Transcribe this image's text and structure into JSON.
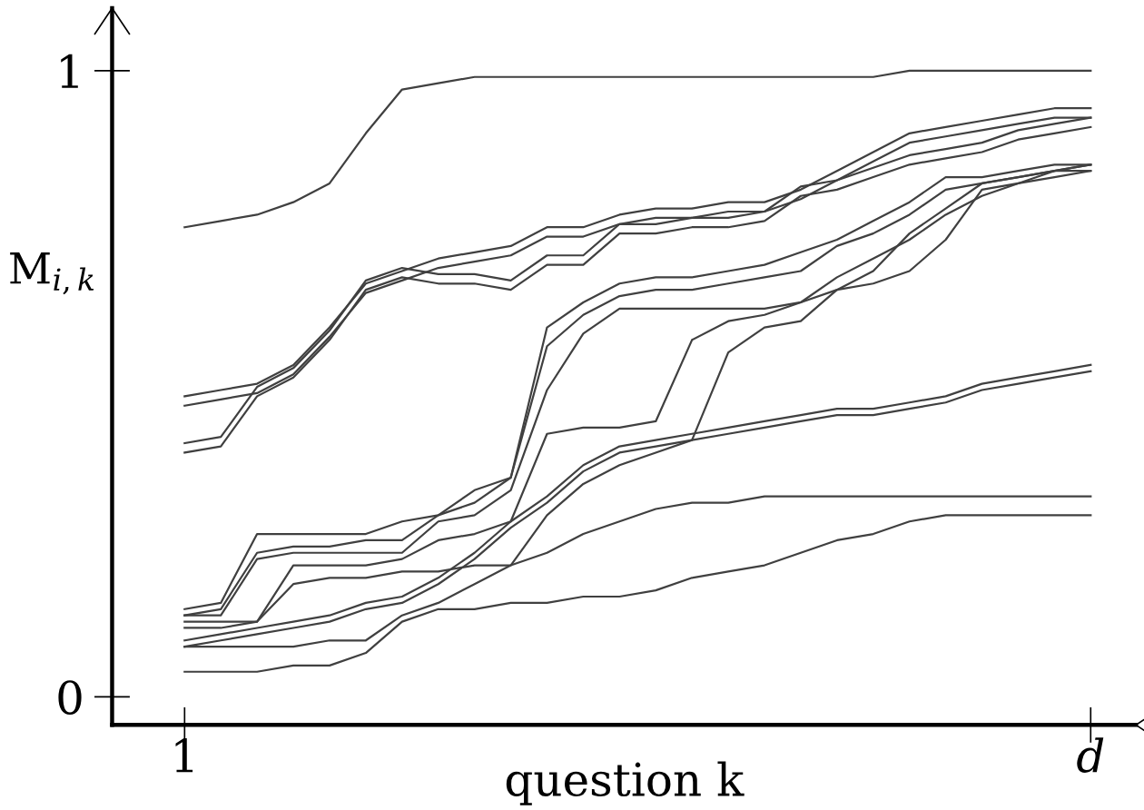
{
  "chart_data": {
    "type": "line",
    "xlabel": "question k",
    "ylabel": "M$_{i,k}$",
    "categories": [
      "1",
      null,
      null,
      null,
      null,
      null,
      null,
      null,
      null,
      null,
      null,
      null,
      null,
      null,
      null,
      null,
      null,
      null,
      null,
      null,
      null,
      null,
      null,
      null,
      null,
      "d"
    ],
    "ylim": [
      -0.045,
      1.1
    ],
    "yticks": [
      0,
      1
    ],
    "grid": false,
    "legend": false,
    "marker": "none",
    "line_style": "solid",
    "series": [
      {
        "color": "#404040",
        "values": [
          0.75,
          0.76,
          0.77,
          0.79,
          0.82,
          0.9,
          0.97,
          0.98,
          0.99,
          0.99,
          0.99,
          0.99,
          0.99,
          0.99,
          0.99,
          0.99,
          0.99,
          0.99,
          0.99,
          0.99,
          1.0,
          1.0,
          1.0,
          1.0,
          1.0,
          1.0
        ]
      },
      {
        "color": "#404040",
        "values": [
          0.48,
          0.49,
          0.5,
          0.53,
          0.59,
          0.66,
          0.68,
          0.7,
          0.71,
          0.72,
          0.75,
          0.75,
          0.77,
          0.78,
          0.78,
          0.79,
          0.79,
          0.81,
          0.84,
          0.87,
          0.9,
          0.91,
          0.92,
          0.93,
          0.94,
          0.94
        ]
      },
      {
        "color": "#404040",
        "values": [
          0.465,
          0.475,
          0.485,
          0.515,
          0.575,
          0.645,
          0.665,
          0.685,
          0.695,
          0.705,
          0.735,
          0.735,
          0.755,
          0.765,
          0.765,
          0.775,
          0.775,
          0.795,
          0.825,
          0.855,
          0.885,
          0.895,
          0.905,
          0.915,
          0.925,
          0.925
        ]
      },
      {
        "color": "#404040",
        "values": [
          0.39,
          0.4,
          0.48,
          0.51,
          0.57,
          0.65,
          0.67,
          0.66,
          0.66,
          0.65,
          0.69,
          0.69,
          0.74,
          0.74,
          0.75,
          0.75,
          0.76,
          0.8,
          0.81,
          0.83,
          0.85,
          0.86,
          0.87,
          0.89,
          0.9,
          0.91
        ]
      },
      {
        "color": "#404040",
        "values": [
          0.405,
          0.415,
          0.495,
          0.525,
          0.585,
          0.665,
          0.685,
          0.675,
          0.675,
          0.665,
          0.705,
          0.705,
          0.755,
          0.755,
          0.765,
          0.765,
          0.775,
          0.815,
          0.825,
          0.845,
          0.865,
          0.875,
          0.885,
          0.905,
          0.915,
          0.925
        ]
      },
      {
        "color": "#404040",
        "values": [
          0.14,
          0.15,
          0.26,
          0.26,
          0.26,
          0.26,
          0.28,
          0.29,
          0.33,
          0.35,
          0.59,
          0.63,
          0.66,
          0.67,
          0.67,
          0.68,
          0.69,
          0.71,
          0.73,
          0.76,
          0.79,
          0.83,
          0.83,
          0.84,
          0.85,
          0.85
        ]
      },
      {
        "color": "#404040",
        "values": [
          0.13,
          0.14,
          0.23,
          0.24,
          0.24,
          0.25,
          0.25,
          0.29,
          0.31,
          0.35,
          0.56,
          0.61,
          0.64,
          0.65,
          0.65,
          0.66,
          0.67,
          0.68,
          0.72,
          0.74,
          0.77,
          0.81,
          0.82,
          0.83,
          0.84,
          0.85
        ]
      },
      {
        "color": "#404040",
        "values": [
          0.13,
          0.13,
          0.22,
          0.23,
          0.23,
          0.23,
          0.23,
          0.28,
          0.29,
          0.33,
          0.49,
          0.58,
          0.62,
          0.62,
          0.62,
          0.62,
          0.62,
          0.63,
          0.67,
          0.7,
          0.73,
          0.77,
          0.8,
          0.82,
          0.84,
          0.85
        ]
      },
      {
        "color": "#404040",
        "values": [
          0.12,
          0.12,
          0.12,
          0.21,
          0.21,
          0.21,
          0.22,
          0.25,
          0.26,
          0.28,
          0.42,
          0.43,
          0.43,
          0.44,
          0.57,
          0.6,
          0.61,
          0.63,
          0.65,
          0.68,
          0.74,
          0.78,
          0.82,
          0.83,
          0.84,
          0.84
        ]
      },
      {
        "color": "#404040",
        "values": [
          0.11,
          0.11,
          0.12,
          0.18,
          0.19,
          0.19,
          0.2,
          0.2,
          0.21,
          0.21,
          0.29,
          0.34,
          0.37,
          0.39,
          0.41,
          0.55,
          0.59,
          0.6,
          0.65,
          0.66,
          0.68,
          0.73,
          0.81,
          0.82,
          0.83,
          0.84
        ]
      },
      {
        "color": "#404040",
        "values": [
          0.09,
          0.1,
          0.11,
          0.12,
          0.13,
          0.15,
          0.16,
          0.19,
          0.23,
          0.28,
          0.32,
          0.37,
          0.4,
          0.41,
          0.42,
          0.43,
          0.44,
          0.45,
          0.46,
          0.46,
          0.47,
          0.48,
          0.5,
          0.51,
          0.52,
          0.53
        ]
      },
      {
        "color": "#404040",
        "values": [
          0.08,
          0.09,
          0.1,
          0.11,
          0.12,
          0.14,
          0.15,
          0.18,
          0.22,
          0.27,
          0.31,
          0.36,
          0.39,
          0.4,
          0.41,
          0.42,
          0.43,
          0.44,
          0.45,
          0.45,
          0.46,
          0.47,
          0.49,
          0.5,
          0.51,
          0.52
        ]
      },
      {
        "color": "#404040",
        "values": [
          0.08,
          0.08,
          0.08,
          0.08,
          0.09,
          0.09,
          0.13,
          0.15,
          0.18,
          0.21,
          0.23,
          0.26,
          0.28,
          0.3,
          0.31,
          0.31,
          0.32,
          0.32,
          0.32,
          0.32,
          0.32,
          0.32,
          0.32,
          0.32,
          0.32,
          0.32
        ]
      },
      {
        "color": "#404040",
        "values": [
          0.04,
          0.04,
          0.04,
          0.05,
          0.05,
          0.07,
          0.12,
          0.14,
          0.14,
          0.15,
          0.15,
          0.16,
          0.16,
          0.17,
          0.19,
          0.2,
          0.21,
          0.23,
          0.25,
          0.26,
          0.28,
          0.29,
          0.29,
          0.29,
          0.29,
          0.29
        ]
      }
    ]
  }
}
